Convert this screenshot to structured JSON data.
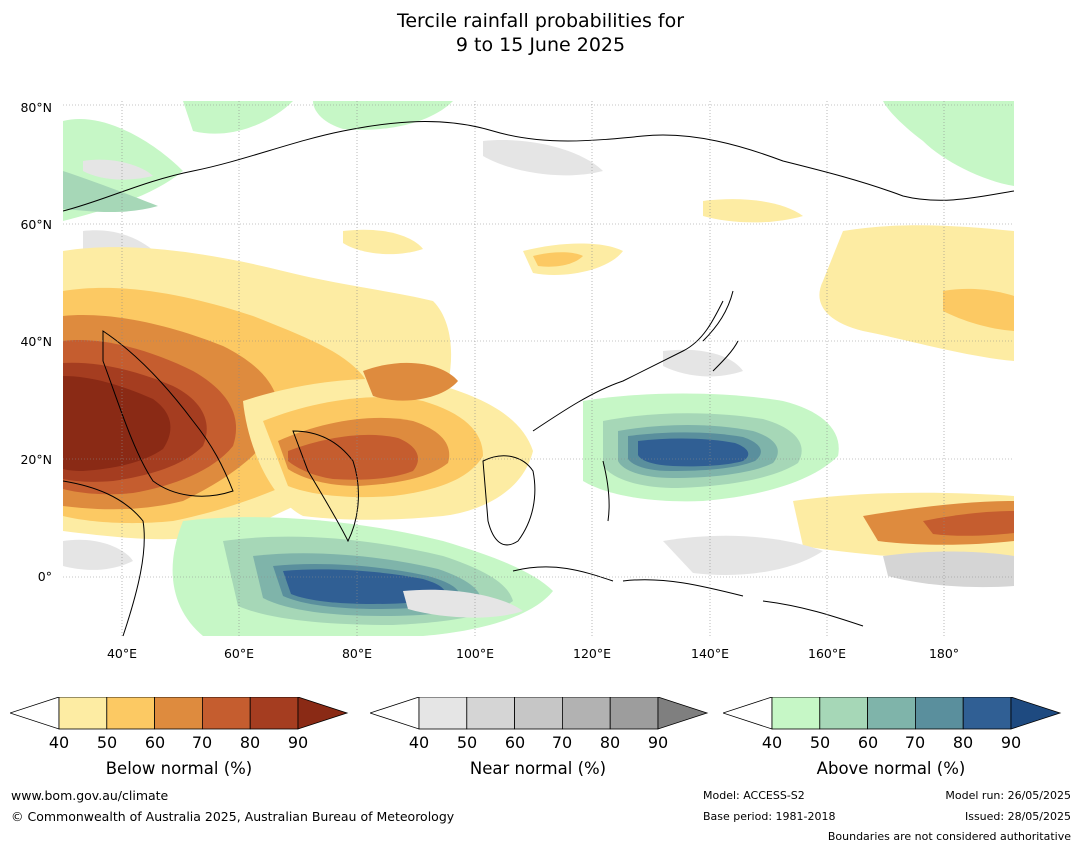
{
  "title": {
    "line1": "Tercile rainfall probabilities for",
    "line2": "9 to 15 June 2025"
  },
  "map": {
    "lat_labels": [
      "80°N",
      "60°N",
      "40°N",
      "20°N",
      "0°"
    ],
    "lon_labels": [
      "40°E",
      "60°E",
      "80°E",
      "100°E",
      "120°E",
      "140°E",
      "160°E",
      "180°"
    ],
    "colors": {
      "below": [
        "#fdeca3",
        "#fcc963",
        "#de8b3e",
        "#c55d2f",
        "#a53d20",
        "#8a2a15"
      ],
      "near": [
        "#e5e5e5",
        "#d5d5d5",
        "#c6c6c6",
        "#b2b2b2",
        "#9d9d9d",
        "#7f7f7f"
      ],
      "above": [
        "#c6f7c6",
        "#a6d7b7",
        "#7fb4aa",
        "#5a8f9d",
        "#305f94",
        "#1e4a80"
      ],
      "land_outline": "#000000",
      "border": "#888888",
      "grid": "#8a8a8a"
    }
  },
  "colorbars": [
    {
      "label": "Below normal (%)",
      "ticks": [
        "40",
        "50",
        "60",
        "70",
        "80",
        "90"
      ]
    },
    {
      "label": "Near normal (%)",
      "ticks": [
        "40",
        "50",
        "60",
        "70",
        "80",
        "90"
      ]
    },
    {
      "label": "Above normal (%)",
      "ticks": [
        "40",
        "50",
        "60",
        "70",
        "80",
        "90"
      ]
    }
  ],
  "footer": {
    "website": "www.bom.gov.au/climate",
    "copyright": "© Commonwealth of Australia 2025, Australian Bureau of Meteorology",
    "model": "Model: ACCESS-S2",
    "base_period": "Base period: 1981-2018",
    "model_run": "Model run: 26/05/2025",
    "issued": "Issued: 28/05/2025",
    "disclaimer": "Boundaries are not considered authoritative"
  }
}
